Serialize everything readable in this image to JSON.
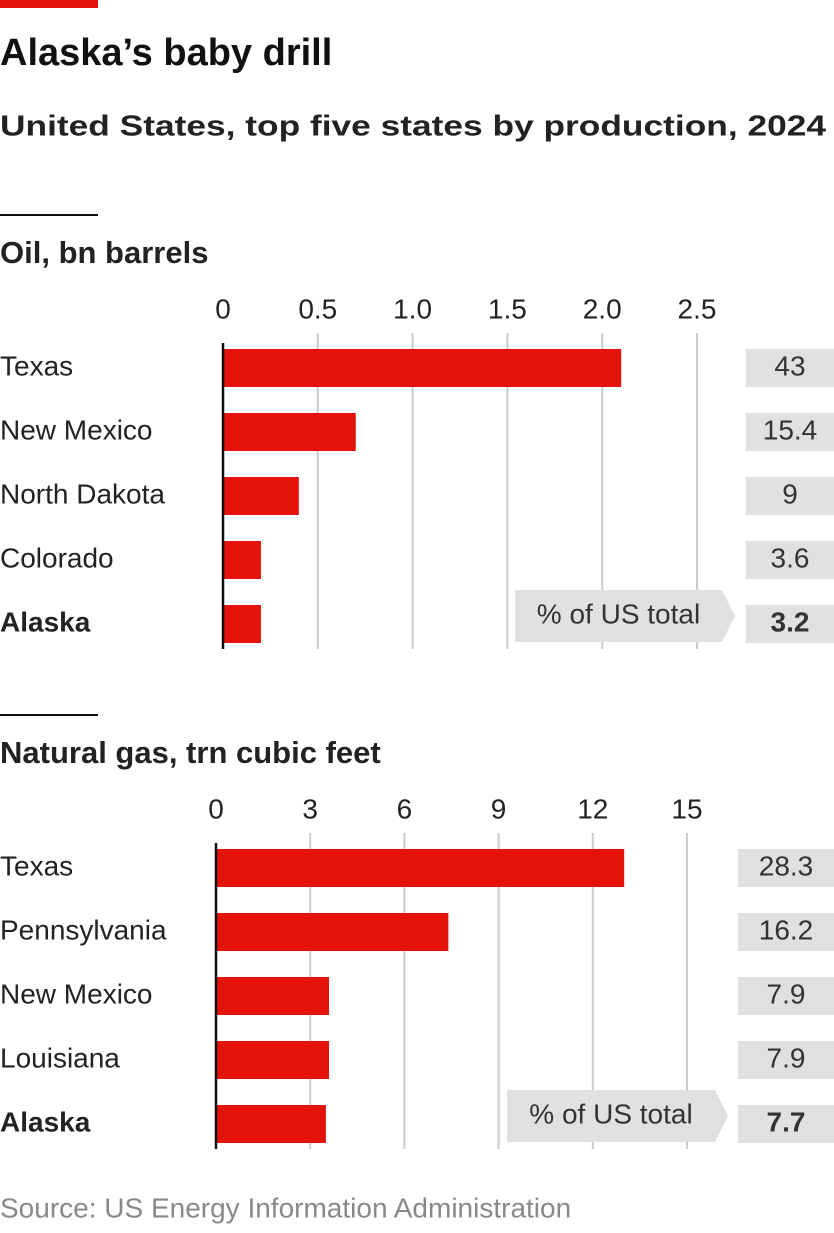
{
  "title": "Alaska’s baby drill",
  "subtitle": "United States, top five states by production, 2024",
  "source": "Source: US Energy Information Administration",
  "chart_data": [
    {
      "type": "bar",
      "title": "Oil, bn barrels",
      "categories": [
        "Texas",
        "New Mexico",
        "North Dakota",
        "Colorado",
        "Alaska"
      ],
      "values": [
        2.1,
        0.7,
        0.4,
        0.2,
        0.2
      ],
      "color": "#e3120b",
      "xlim": [
        0,
        2.5
      ],
      "xticks": [
        0,
        0.5,
        {
          "value": 1,
          "label": "1.0"
        },
        1.5,
        {
          "value": 2,
          "label": "2.0"
        },
        2.5
      ],
      "grid": true,
      "highlight": 4,
      "share_label": "% of US total",
      "shares": [
        43,
        15.4,
        9,
        3.6,
        3.2
      ]
    },
    {
      "type": "bar",
      "title": "Natural gas, trn cubic feet",
      "categories": [
        "Texas",
        "Pennsylvania",
        "New Mexico",
        "Louisiana",
        "Alaska"
      ],
      "values": [
        13,
        7.4,
        3.6,
        3.6,
        3.5
      ],
      "color": "#e3120b",
      "xlim": [
        0,
        15
      ],
      "xticks": [
        0,
        3,
        6,
        9,
        12,
        15
      ],
      "grid": true,
      "highlight": 4,
      "share_label": "% of US total",
      "shares": [
        28.3,
        16.2,
        7.9,
        7.9,
        7.7
      ]
    }
  ]
}
